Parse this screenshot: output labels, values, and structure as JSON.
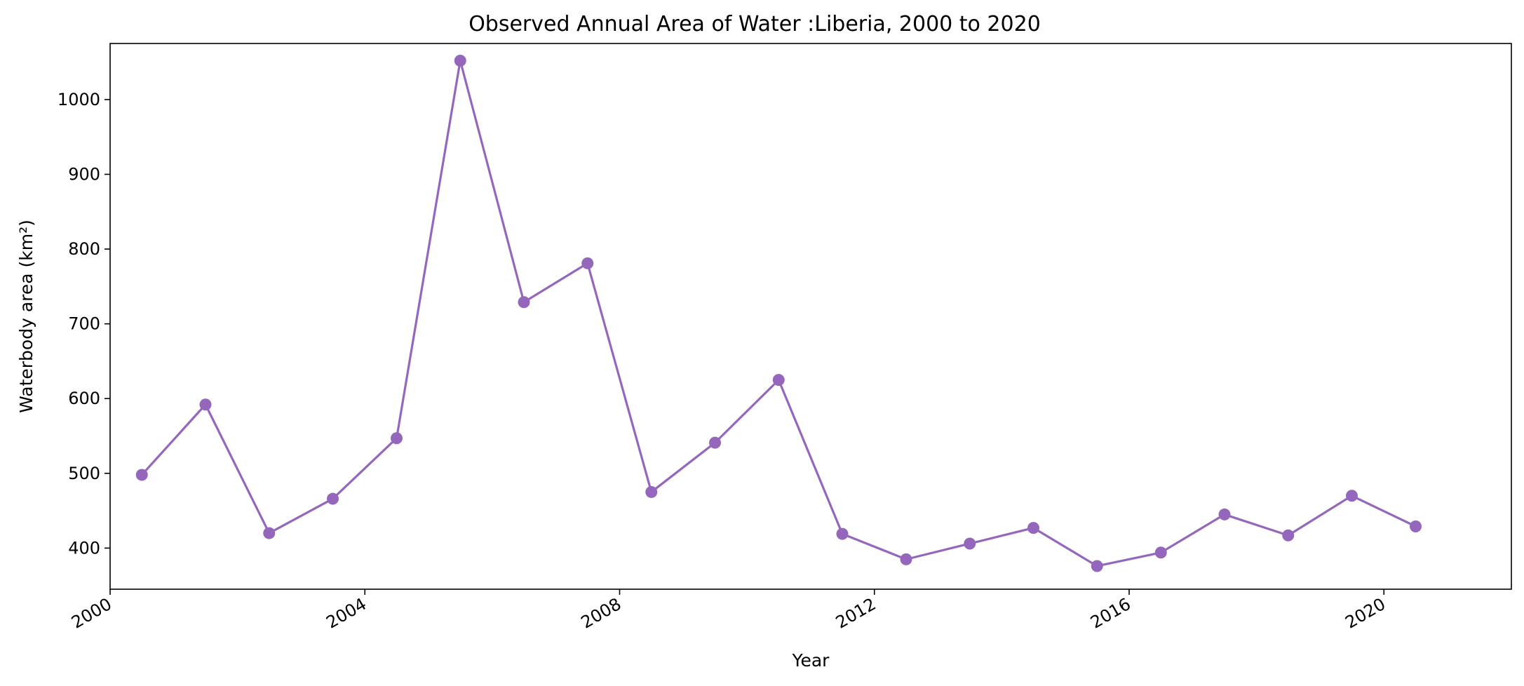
{
  "chart_data": {
    "type": "line",
    "title": "Observed Annual Area of Water :Liberia, 2000 to 2020",
    "xlabel": "Year",
    "ylabel": "Waterbody area (km²)",
    "x_ticks": [
      "2000",
      "2004",
      "2008",
      "2012",
      "2016",
      "2020"
    ],
    "y_ticks": [
      400,
      500,
      600,
      700,
      800,
      900,
      1000
    ],
    "xlim": [
      "2000-01-01",
      "2022-01-01"
    ],
    "ylim": [
      345,
      1075
    ],
    "grid": false,
    "color": "#9467bd",
    "series": [
      {
        "x": [
          "2000-07-01",
          "2001-07-01",
          "2002-07-01",
          "2003-07-01",
          "2004-07-01",
          "2005-07-01",
          "2006-07-01",
          "2007-07-01",
          "2008-07-01",
          "2009-07-01",
          "2010-07-01",
          "2011-07-01",
          "2012-07-01",
          "2013-07-01",
          "2014-07-01",
          "2015-07-01",
          "2016-07-01",
          "2017-07-01",
          "2018-07-01",
          "2019-07-01",
          "2020-07-01"
        ],
        "values": [
          498,
          592,
          420,
          466,
          547,
          1052,
          729,
          781,
          475,
          541,
          625,
          419,
          385,
          406,
          427,
          376,
          394,
          445,
          417,
          470,
          429
        ]
      }
    ]
  }
}
